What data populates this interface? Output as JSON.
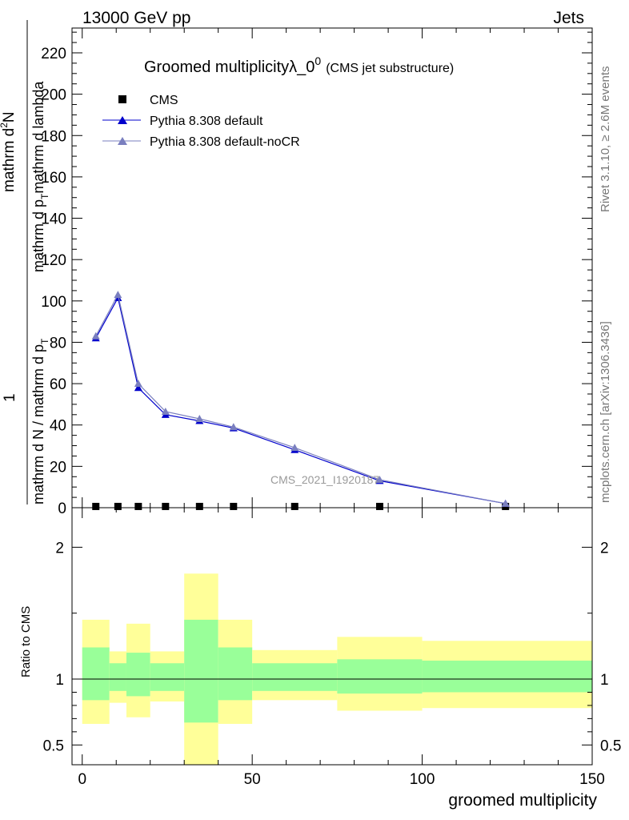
{
  "header": {
    "energy_label": "13000 GeV pp",
    "process_label": "Jets"
  },
  "side_text": {
    "rivet": "Rivet 3.1.10, ≥ 2.6M events",
    "mcplots": "mcplots.cern.ch [arXiv:1306.3436]"
  },
  "chart_data": [
    {
      "type": "line",
      "title": "Groomed multiplicityλ_0",
      "title_sup": "0",
      "subtitle": "(CMS jet substructure)",
      "watermark": "CMS_2021_I1920187",
      "ylabel_num": "mathrm d",
      "ylabel_num_sup": "2",
      "ylabel_num_end": "N",
      "ylabel_left": "1",
      "ylabel_den": "mathrm d N / mathrm d p",
      "ylabel_den_sub": "T",
      "ylabel_den2": "mathrm d p",
      "ylabel_den2_sub": "T",
      "ylabel_den3": "mathrm d lambda",
      "xlim": [
        -3,
        150
      ],
      "ylim": [
        0,
        232
      ],
      "yticks": [
        0,
        20,
        40,
        60,
        80,
        100,
        120,
        140,
        160,
        180,
        200,
        220
      ],
      "legend_position": "top-left",
      "series": [
        {
          "name": "CMS",
          "color": "#000000",
          "marker": "square",
          "x": [
            4,
            10.5,
            16.5,
            24.5,
            34.5,
            44.5,
            62.5,
            87.5,
            124.5
          ],
          "values": [
            0.6,
            0.6,
            0.6,
            0.6,
            0.6,
            0.6,
            0.6,
            0.6,
            0.6
          ]
        },
        {
          "name": "Pythia 8.308 default",
          "color": "#0000cc",
          "marker": "triangle",
          "x": [
            4,
            10.5,
            16.5,
            24.5,
            34.5,
            44.5,
            62.5,
            87.5,
            124.5
          ],
          "values": [
            82,
            101.5,
            58,
            45,
            42,
            38.5,
            28,
            13,
            2
          ]
        },
        {
          "name": "Pythia 8.308 default-noCR",
          "color": "#7a7fbf",
          "marker": "triangle",
          "x": [
            4,
            10.5,
            16.5,
            24.5,
            34.5,
            44.5,
            62.5,
            87.5,
            124.5
          ],
          "values": [
            83,
            103,
            60,
            46.5,
            43,
            39,
            29,
            13.5,
            2
          ]
        }
      ]
    },
    {
      "type": "area",
      "ylabel": "Ratio to CMS",
      "xlabel": "groomed multiplicity",
      "xlim": [
        -3,
        150
      ],
      "ylim": [
        0.35,
        2.3
      ],
      "yticks": [
        0.5,
        1,
        2
      ],
      "xticks": [
        0,
        50,
        100,
        150
      ],
      "reference_line": 1,
      "bands": [
        {
          "x0": 0,
          "x1": 8,
          "inner": [
            0.84,
            1.24
          ],
          "outer": [
            0.66,
            1.45
          ]
        },
        {
          "x0": 8,
          "x1": 13,
          "inner": [
            0.91,
            1.12
          ],
          "outer": [
            0.82,
            1.21
          ]
        },
        {
          "x0": 13,
          "x1": 20,
          "inner": [
            0.87,
            1.2
          ],
          "outer": [
            0.71,
            1.42
          ]
        },
        {
          "x0": 20,
          "x1": 30,
          "inner": [
            0.91,
            1.12
          ],
          "outer": [
            0.83,
            1.21
          ]
        },
        {
          "x0": 30,
          "x1": 40,
          "inner": [
            0.67,
            1.45
          ],
          "outer": [
            0.35,
            1.8
          ]
        },
        {
          "x0": 40,
          "x1": 50,
          "inner": [
            0.84,
            1.24
          ],
          "outer": [
            0.66,
            1.45
          ]
        },
        {
          "x0": 50,
          "x1": 75,
          "inner": [
            0.91,
            1.12
          ],
          "outer": [
            0.84,
            1.22
          ]
        },
        {
          "x0": 75,
          "x1": 100,
          "inner": [
            0.89,
            1.15
          ],
          "outer": [
            0.76,
            1.32
          ]
        },
        {
          "x0": 100,
          "x1": 150,
          "inner": [
            0.9,
            1.14
          ],
          "outer": [
            0.78,
            1.29
          ]
        }
      ]
    }
  ]
}
